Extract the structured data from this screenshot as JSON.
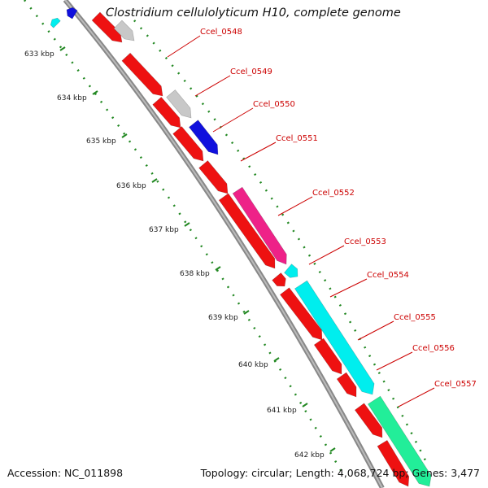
{
  "header": {
    "title": "Clostridium cellulolyticum H10, complete genome"
  },
  "footer": {
    "accession": "Accession: NC_011898",
    "summary": "Topology: circular; Length: 4,068,724 bp; Genes: 3,477"
  },
  "colors": {
    "backbone": "#999999",
    "forward_gene": "#ee1111",
    "grey_gene": "#c8c8c8",
    "blue_gene": "#1010dd",
    "magenta_gene": "#ee2288",
    "cyan_gene": "#00eeee",
    "green_gene": "#22ee99",
    "tick": "#228822",
    "label": "#cc0000"
  },
  "kbp_ticks": [
    "633 kbp",
    "634 kbp",
    "635 kbp",
    "636 kbp",
    "637 kbp",
    "638 kbp",
    "639 kbp",
    "640 kbp",
    "641 kbp",
    "642 kbp"
  ],
  "gene_labels": [
    "Ccel_0548",
    "Ccel_0549",
    "Ccel_0550",
    "Ccel_0551",
    "Ccel_0552",
    "Ccel_0553",
    "Ccel_0554",
    "Ccel_0555",
    "Ccel_0556",
    "Ccel_0557"
  ]
}
